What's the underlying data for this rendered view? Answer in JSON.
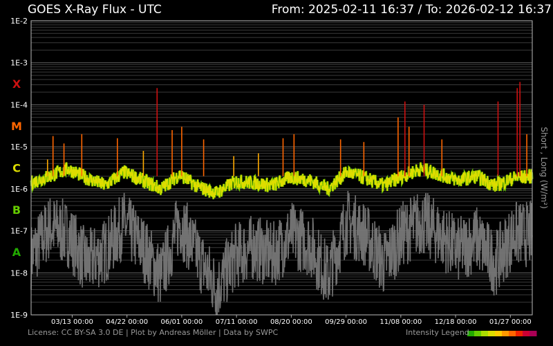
{
  "header": {
    "title": "GOES X-Ray Flux - UTC",
    "range": "From: 2025-02-11 16:37  /  To: 2026-02-12 16:37"
  },
  "footer": {
    "license": "License: CC BY-SA 3.0 DE | Plot by Andreas Möller | Data by SWPC",
    "intensity_legend": "Intensity Legend",
    "legend_colors": [
      "#22aa00",
      "#66cc00",
      "#aadd00",
      "#dddd00",
      "#ffcc00",
      "#ff9900",
      "#ff6600",
      "#ee2200",
      "#cc0033",
      "#aa0055"
    ]
  },
  "chart_data": {
    "type": "line",
    "title": "GOES X-Ray Flux - UTC",
    "ylabel": "Short , Long (W/m²)",
    "yscale": "log",
    "ylim": [
      1e-09,
      0.01
    ],
    "ytick_labels": [
      "1E-2",
      "1E-3",
      "1E-4",
      "1E-5",
      "1E-6",
      "1E-7",
      "1E-8",
      "1E-9"
    ],
    "xtick_labels": [
      "03/13 00:00",
      "04/22 00:00",
      "06/01 00:00",
      "07/11 00:00",
      "08/20 00:00",
      "09/29 00:00",
      "11/08 00:00",
      "12/18 00:00",
      "01/27 00:00"
    ],
    "flare_classes": [
      {
        "label": "X",
        "color": "#cc1111"
      },
      {
        "label": "M",
        "color": "#ff6600"
      },
      {
        "label": "C",
        "color": "#dddd00"
      },
      {
        "label": "B",
        "color": "#66cc00"
      },
      {
        "label": "A",
        "color": "#22aa00"
      }
    ],
    "x": [
      "2025-02-11",
      "2025-02-26",
      "2025-03-13",
      "2025-03-28",
      "2025-04-12",
      "2025-04-22",
      "2025-05-07",
      "2025-05-22",
      "2025-06-01",
      "2025-06-16",
      "2025-07-01",
      "2025-07-11",
      "2025-07-26",
      "2025-08-10",
      "2025-08-20",
      "2025-09-04",
      "2025-09-19",
      "2025-09-29",
      "2025-10-14",
      "2025-10-29",
      "2025-11-08",
      "2025-11-23",
      "2025-12-08",
      "2025-12-18",
      "2026-01-02",
      "2026-01-17",
      "2026-01-27",
      "2026-02-12"
    ],
    "series": [
      {
        "name": "Long",
        "color": "#dddd00",
        "values": [
          1.4e-06,
          2e-06,
          3e-06,
          1.8e-06,
          1.2e-06,
          2.5e-06,
          1.6e-06,
          1e-06,
          2.2e-06,
          1.1e-06,
          8e-07,
          1.5e-06,
          1.4e-06,
          1.2e-06,
          1.9e-06,
          1.6e-06,
          1e-06,
          2.5e-06,
          1.8e-06,
          1.2e-06,
          2e-06,
          3e-06,
          2.2e-06,
          1.6e-06,
          2e-06,
          1.2e-06,
          1.8e-06,
          2e-06
        ]
      },
      {
        "name": "Short",
        "color": "#777777",
        "values": [
          3e-08,
          1.5e-07,
          1e-07,
          2e-08,
          4e-08,
          1.8e-07,
          5e-08,
          1e-08,
          2e-07,
          3e-08,
          5e-09,
          3e-08,
          5e-08,
          3e-08,
          1e-07,
          6e-08,
          1e-08,
          2e-07,
          1e-07,
          2e-08,
          1e-07,
          2e-07,
          1e-07,
          4e-08,
          8e-08,
          2e-08,
          1e-07,
          1e-07
        ]
      }
    ],
    "peaks": [
      {
        "x": "2025-02-23",
        "y": 5e-06
      },
      {
        "x": "2025-02-27",
        "y": 1.8e-05
      },
      {
        "x": "2025-03-07",
        "y": 1.2e-05
      },
      {
        "x": "2025-03-20",
        "y": 2e-05
      },
      {
        "x": "2025-04-15",
        "y": 1.6e-05
      },
      {
        "x": "2025-05-04",
        "y": 8e-06
      },
      {
        "x": "2025-05-14",
        "y": 0.00025
      },
      {
        "x": "2025-05-25",
        "y": 2.5e-05
      },
      {
        "x": "2025-06-01",
        "y": 3e-05
      },
      {
        "x": "2025-06-17",
        "y": 1.5e-05
      },
      {
        "x": "2025-07-09",
        "y": 6e-06
      },
      {
        "x": "2025-07-27",
        "y": 7e-06
      },
      {
        "x": "2025-08-14",
        "y": 1.6e-05
      },
      {
        "x": "2025-08-22",
        "y": 2e-05
      },
      {
        "x": "2025-09-25",
        "y": 1.5e-05
      },
      {
        "x": "2025-10-12",
        "y": 1.3e-05
      },
      {
        "x": "2025-11-06",
        "y": 5e-05
      },
      {
        "x": "2025-11-11",
        "y": 0.00012
      },
      {
        "x": "2025-11-14",
        "y": 3e-05
      },
      {
        "x": "2025-11-25",
        "y": 0.0001
      },
      {
        "x": "2025-12-08",
        "y": 1.5e-05
      },
      {
        "x": "2026-01-18",
        "y": 0.00012
      },
      {
        "x": "2026-02-01",
        "y": 0.00025
      },
      {
        "x": "2026-02-03",
        "y": 0.00035
      },
      {
        "x": "2026-02-08",
        "y": 2e-05
      }
    ],
    "grid": true
  }
}
